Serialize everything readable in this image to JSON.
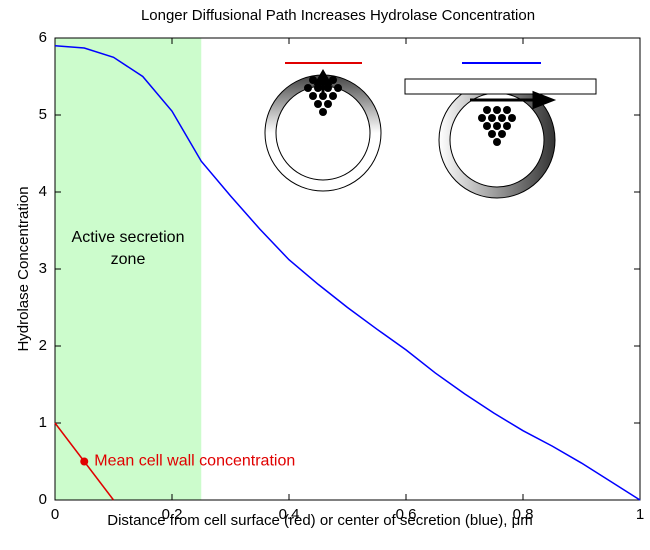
{
  "chart_data": {
    "type": "line",
    "title": "Longer Diffusional Path Increases Hydrolase Concentration",
    "x_label": "Distance from cell surface (red) or center of secretion (blue), μm",
    "y_label": "Hydrolase Concentration",
    "xlim": [
      0,
      1
    ],
    "ylim": [
      0,
      6
    ],
    "xticks": [
      0,
      0.2,
      0.4,
      0.6,
      0.8,
      1
    ],
    "yticks": [
      0,
      1,
      2,
      3,
      4,
      5,
      6
    ],
    "shaded_region": {
      "x": [
        0,
        0.25
      ],
      "color": "#ccfccc",
      "label": [
        "Active secretion",
        "zone"
      ]
    },
    "series": [
      {
        "color": "#0000ff",
        "x": [
          0,
          0.05,
          0.1,
          0.15,
          0.2,
          0.25,
          0.3,
          0.35,
          0.4,
          0.45,
          0.5,
          0.55,
          0.6,
          0.65,
          0.7,
          0.75,
          0.8,
          0.85,
          0.9,
          0.95,
          1
        ],
        "values": [
          5.9,
          5.87,
          5.75,
          5.5,
          5.05,
          4.4,
          3.95,
          3.52,
          3.12,
          2.8,
          2.5,
          2.22,
          1.95,
          1.65,
          1.38,
          1.13,
          0.9,
          0.7,
          0.48,
          0.24,
          0
        ]
      },
      {
        "color": "#e00000",
        "x": [
          0,
          0.1
        ],
        "values": [
          1,
          0
        ]
      }
    ],
    "points": [
      {
        "x": 0.05,
        "y": 0.5,
        "color": "#e00000",
        "label": "Mean cell wall concentration"
      }
    ]
  }
}
